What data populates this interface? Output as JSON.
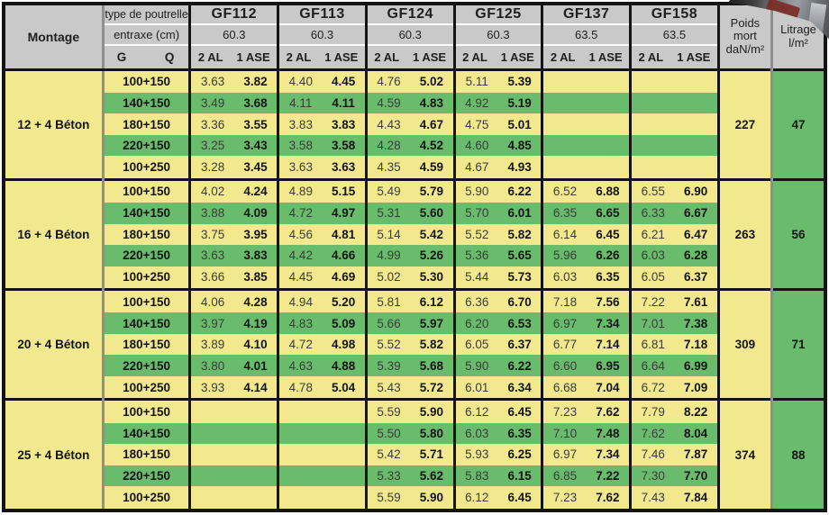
{
  "colors": {
    "row_yellow": "#f2e88e",
    "row_green": "#69bc6c",
    "header_gray": "#c9c9c9",
    "border_black": "#141414",
    "separator_gray": "#8f8f8f"
  },
  "header": {
    "montage_label": "Montage",
    "type_label": "type de poutrelle",
    "entraxe_label": "entraxe (cm)",
    "g_label": "G",
    "q_label": "Q",
    "al_label": "2 AL",
    "ase_label": "1 ASE",
    "poids_lines": [
      "Poids",
      "mort",
      "daN/m²"
    ],
    "litrage_lines": [
      "Litrage",
      "l/m²"
    ],
    "groups": [
      {
        "name": "GF112",
        "entraxe": "60.3"
      },
      {
        "name": "GF113",
        "entraxe": "60.3"
      },
      {
        "name": "GF124",
        "entraxe": "60.3"
      },
      {
        "name": "GF125",
        "entraxe": "60.3"
      },
      {
        "name": "GF137",
        "entraxe": "63.5"
      },
      {
        "name": "GF158",
        "entraxe": "63.5"
      }
    ]
  },
  "blocks": [
    {
      "montage": "12 + 4 Béton",
      "poids_mort": "227",
      "litrage": "47",
      "rows": [
        {
          "gq": "100+150",
          "values": [
            "3.63",
            "3.82",
            "4.40",
            "4.45",
            "4.76",
            "5.02",
            "5.11",
            "5.39",
            "",
            "",
            "",
            ""
          ]
        },
        {
          "gq": "140+150",
          "values": [
            "3.49",
            "3.68",
            "4.11",
            "4.11",
            "4.59",
            "4.83",
            "4.92",
            "5.19",
            "",
            "",
            "",
            ""
          ]
        },
        {
          "gq": "180+150",
          "values": [
            "3.36",
            "3.55",
            "3.83",
            "3.83",
            "4.43",
            "4.67",
            "4.75",
            "5.01",
            "",
            "",
            "",
            ""
          ]
        },
        {
          "gq": "220+150",
          "values": [
            "3.25",
            "3.43",
            "3.58",
            "3.58",
            "4.28",
            "4.52",
            "4.60",
            "4.85",
            "",
            "",
            "",
            ""
          ]
        },
        {
          "gq": "100+250",
          "values": [
            "3.28",
            "3.45",
            "3.63",
            "3.63",
            "4.35",
            "4.59",
            "4.67",
            "4.93",
            "",
            "",
            "",
            ""
          ]
        }
      ]
    },
    {
      "montage": "16 + 4 Béton",
      "poids_mort": "263",
      "litrage": "56",
      "rows": [
        {
          "gq": "100+150",
          "values": [
            "4.02",
            "4.24",
            "4.89",
            "5.15",
            "5.49",
            "5.79",
            "5.90",
            "6.22",
            "6.52",
            "6.88",
            "6.55",
            "6.90"
          ]
        },
        {
          "gq": "140+150",
          "values": [
            "3.88",
            "4.09",
            "4.72",
            "4.97",
            "5.31",
            "5.60",
            "5.70",
            "6.01",
            "6.35",
            "6.65",
            "6.33",
            "6.67"
          ]
        },
        {
          "gq": "180+150",
          "values": [
            "3.75",
            "3.95",
            "4.56",
            "4.81",
            "5.14",
            "5.42",
            "5.52",
            "5.82",
            "6.14",
            "6.45",
            "6.21",
            "6.47"
          ]
        },
        {
          "gq": "220+150",
          "values": [
            "3.63",
            "3.83",
            "4.42",
            "4.66",
            "4.99",
            "5.26",
            "5.36",
            "5.65",
            "5.96",
            "6.26",
            "6.03",
            "6.28"
          ]
        },
        {
          "gq": "100+250",
          "values": [
            "3.66",
            "3.85",
            "4.45",
            "4.69",
            "5.02",
            "5.30",
            "5.44",
            "5.73",
            "6.03",
            "6.35",
            "6.05",
            "6.37"
          ]
        }
      ]
    },
    {
      "montage": "20 + 4 Béton",
      "poids_mort": "309",
      "litrage": "71",
      "rows": [
        {
          "gq": "100+150",
          "values": [
            "4.06",
            "4.28",
            "4.94",
            "5.20",
            "5.81",
            "6.12",
            "6.36",
            "6.70",
            "7.18",
            "7.56",
            "7.22",
            "7.61"
          ]
        },
        {
          "gq": "140+150",
          "values": [
            "3.97",
            "4.19",
            "4.83",
            "5.09",
            "5.66",
            "5.97",
            "6.20",
            "6.53",
            "6.97",
            "7.34",
            "7.01",
            "7.38"
          ]
        },
        {
          "gq": "180+150",
          "values": [
            "3.89",
            "4.10",
            "4.72",
            "4.98",
            "5.52",
            "5.82",
            "6.05",
            "6.37",
            "6.77",
            "7.14",
            "6.81",
            "7.18"
          ]
        },
        {
          "gq": "220+150",
          "values": [
            "3.80",
            "4.01",
            "4.63",
            "4.88",
            "5.39",
            "5.68",
            "5.90",
            "6.22",
            "6.60",
            "6.95",
            "6.64",
            "6.99"
          ]
        },
        {
          "gq": "100+250",
          "values": [
            "3.93",
            "4.14",
            "4.78",
            "5.04",
            "5.43",
            "5.72",
            "6.01",
            "6.34",
            "6.68",
            "7.04",
            "6.72",
            "7.09"
          ]
        }
      ]
    },
    {
      "montage": "25 + 4 Béton",
      "poids_mort": "374",
      "litrage": "88",
      "rows": [
        {
          "gq": "100+150",
          "values": [
            "",
            "",
            "",
            "",
            "5.59",
            "5.90",
            "6.12",
            "6.45",
            "7.23",
            "7.62",
            "7.79",
            "8.22"
          ]
        },
        {
          "gq": "140+150",
          "values": [
            "",
            "",
            "",
            "",
            "5.50",
            "5.80",
            "6.03",
            "6.35",
            "7.10",
            "7.48",
            "7.62",
            "8.04"
          ]
        },
        {
          "gq": "180+150",
          "values": [
            "",
            "",
            "",
            "",
            "5.42",
            "5.71",
            "5.93",
            "6.25",
            "6.97",
            "7.34",
            "7.46",
            "7.87"
          ]
        },
        {
          "gq": "220+150",
          "values": [
            "",
            "",
            "",
            "",
            "5.33",
            "5.62",
            "5.83",
            "6.15",
            "6.85",
            "7.22",
            "7.30",
            "7.70"
          ]
        },
        {
          "gq": "100+250",
          "values": [
            "",
            "",
            "",
            "",
            "5.59",
            "5.90",
            "6.12",
            "6.45",
            "7.23",
            "7.62",
            "7.43",
            "7.84"
          ]
        }
      ]
    }
  ]
}
